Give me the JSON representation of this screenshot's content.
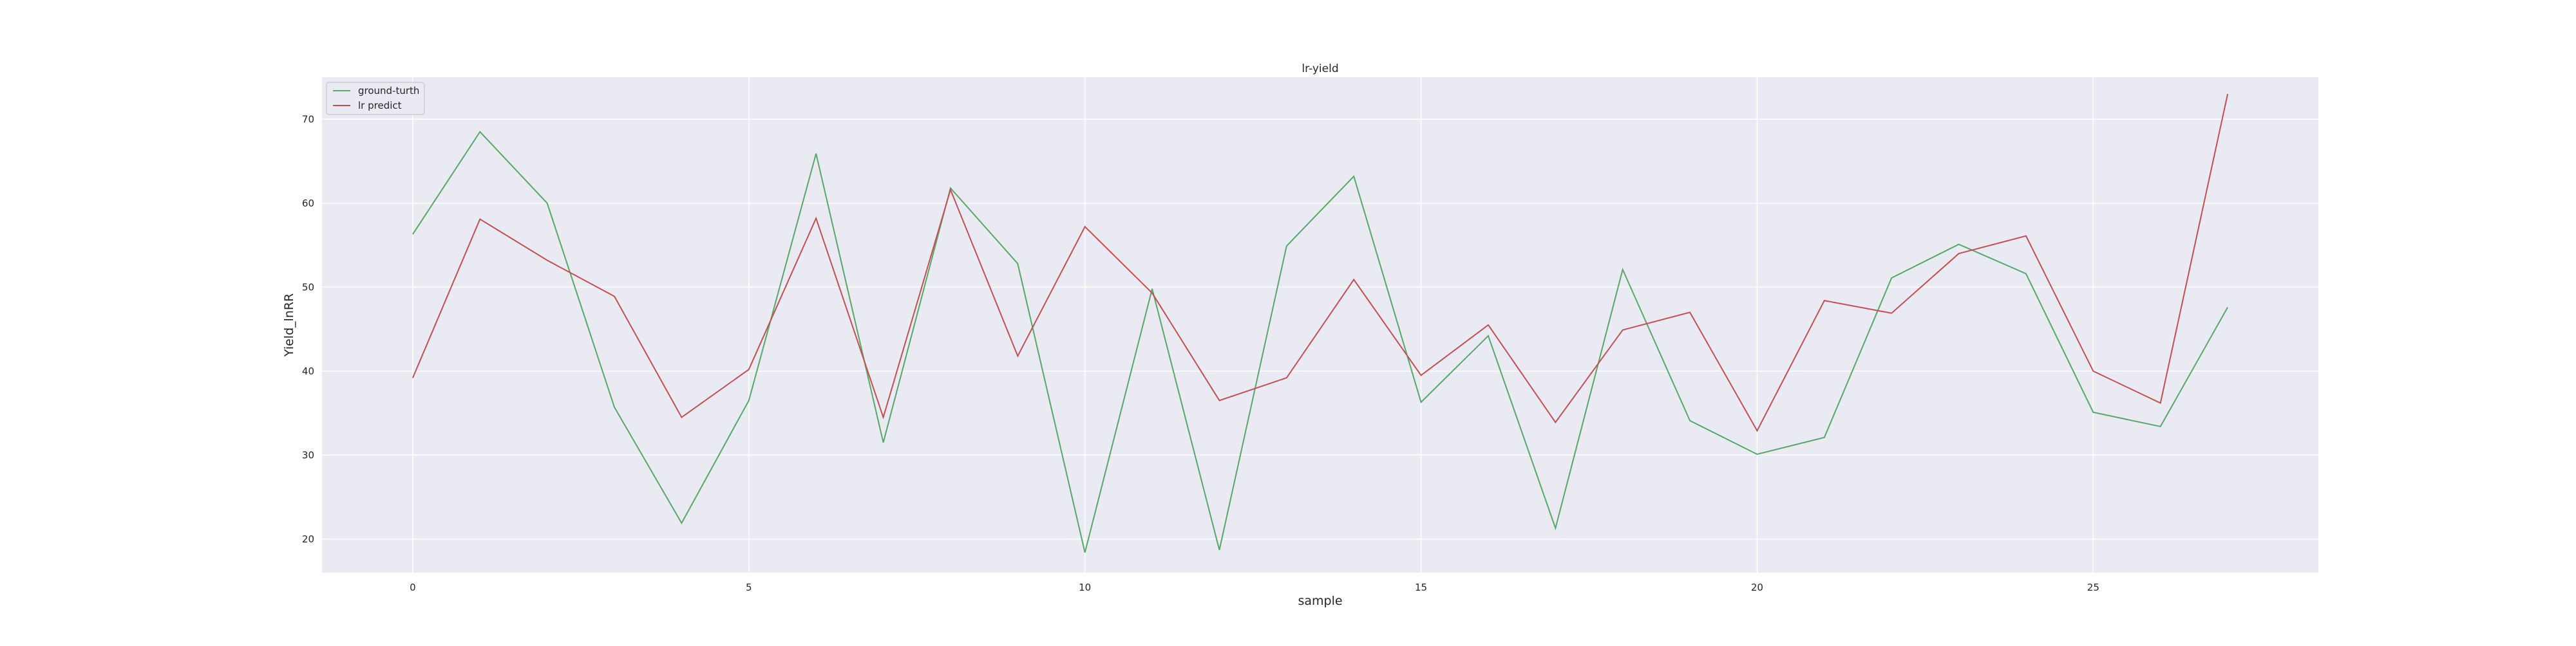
{
  "chart_data": {
    "type": "line",
    "title": "lr-yield",
    "xlabel": "sample",
    "ylabel": "Yield_lnRR",
    "x": [
      0,
      1,
      2,
      3,
      4,
      5,
      6,
      7,
      8,
      9,
      10,
      11,
      12,
      13,
      14,
      15,
      16,
      17,
      18,
      19,
      20,
      21,
      22,
      23,
      24,
      25,
      26,
      27
    ],
    "xlim": [
      -1.35,
      28.35
    ],
    "ylim": [
      16,
      75
    ],
    "xticks": [
      0,
      5,
      10,
      15,
      20,
      25
    ],
    "yticks": [
      20,
      30,
      40,
      50,
      60,
      70
    ],
    "grid": true,
    "legend_position": "top-left",
    "series": [
      {
        "name": "ground-turth",
        "color": "#55a868",
        "values": [
          56.3,
          68.5,
          60.0,
          35.7,
          21.9,
          36.5,
          65.9,
          31.5,
          61.8,
          52.8,
          18.4,
          49.8,
          18.7,
          54.9,
          63.2,
          36.3,
          44.2,
          21.3,
          52.1,
          34.1,
          30.1,
          32.1,
          51.1,
          55.1,
          51.6,
          35.1,
          33.4,
          47.6
        ]
      },
      {
        "name": "lr predict",
        "color": "#c44e52",
        "values": [
          39.2,
          58.1,
          53.2,
          48.9,
          34.5,
          40.2,
          58.2,
          34.5,
          61.6,
          41.8,
          57.2,
          49.3,
          36.5,
          39.2,
          50.9,
          39.5,
          45.5,
          33.9,
          44.9,
          47.0,
          32.9,
          48.4,
          46.9,
          54.0,
          56.1,
          40.0,
          36.2,
          73.0
        ]
      }
    ]
  }
}
